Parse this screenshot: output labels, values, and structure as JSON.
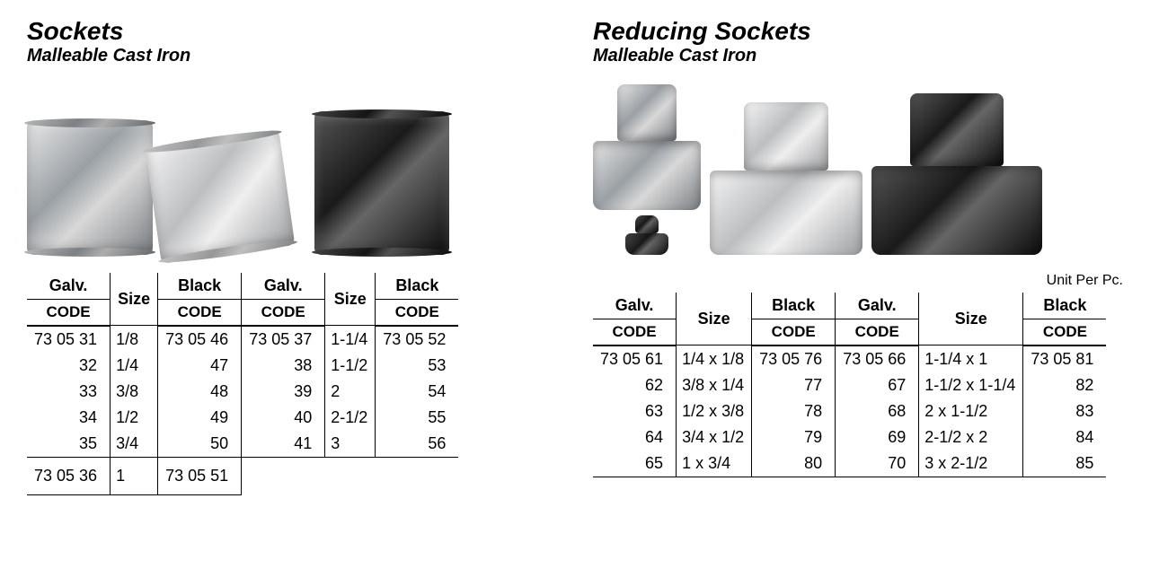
{
  "left": {
    "title": "Sockets",
    "subtitle": "Malleable Cast Iron",
    "table": {
      "headers": [
        "Galv.",
        "Size",
        "Black",
        "Galv.",
        "Size",
        "Black"
      ],
      "code_label": "CODE",
      "rows": [
        {
          "g1": "73 05 31",
          "s1": "1/8",
          "b1": "73 05 46",
          "g2": "73 05 37",
          "s2": "1-1/4",
          "b2": "73 05 52"
        },
        {
          "g1": "32",
          "s1": "1/4",
          "b1": "47",
          "g2": "38",
          "s2": "1-1/2",
          "b2": "53"
        },
        {
          "g1": "33",
          "s1": "3/8",
          "b1": "48",
          "g2": "39",
          "s2": "2",
          "b2": "54"
        },
        {
          "g1": "34",
          "s1": "1/2",
          "b1": "49",
          "g2": "40",
          "s2": "2-1/2",
          "b2": "55"
        },
        {
          "g1": "35",
          "s1": "3/4",
          "b1": "50",
          "g2": "41",
          "s2": "3",
          "b2": "56"
        }
      ],
      "extra_row": {
        "g1": "73 05 36",
        "s1": "1",
        "b1": "73 05 51"
      }
    }
  },
  "right": {
    "title": "Reducing Sockets",
    "subtitle": "Malleable Cast Iron",
    "unit_note": "Unit Per Pc.",
    "table": {
      "headers": [
        "Galv.",
        "Size",
        "Black",
        "Galv.",
        "Size",
        "Black"
      ],
      "code_label": "CODE",
      "rows": [
        {
          "g1": "73 05 61",
          "s1": "1/4 x 1/8",
          "b1": "73 05 76",
          "g2": "73 05 66",
          "s2": "1-1/4 x   1",
          "b2": "73 05 81"
        },
        {
          "g1": "62",
          "s1": "3/8 x 1/4",
          "b1": "77",
          "g2": "67",
          "s2": "1-1/2 x 1-1/4",
          "b2": "82"
        },
        {
          "g1": "63",
          "s1": "1/2 x 3/8",
          "b1": "78",
          "g2": "68",
          "s2": "2   x 1-1/2",
          "b2": "83"
        },
        {
          "g1": "64",
          "s1": "3/4 x 1/2",
          "b1": "79",
          "g2": "69",
          "s2": "2-1/2 x   2",
          "b2": "84"
        },
        {
          "g1": "65",
          "s1": "1   x 3/4",
          "b1": "80",
          "g2": "70",
          "s2": "3   x 2-1/2",
          "b2": "85"
        }
      ]
    }
  },
  "style": {
    "text_color": "#000000",
    "border_color": "#000000",
    "background": "#ffffff"
  }
}
